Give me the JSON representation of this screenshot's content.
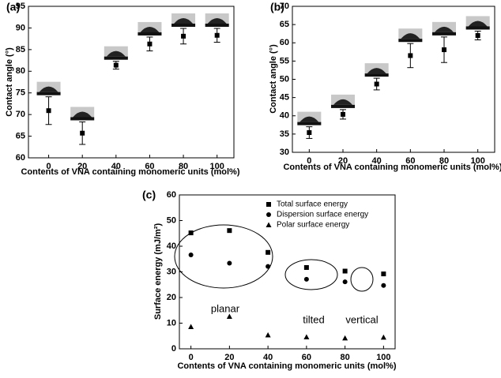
{
  "chart_data": [
    {
      "type": "scatter",
      "panel_label": "(a)",
      "xlabel": "Contents of VNA containing monomeric units (mol%)",
      "ylabel": "Contact angle (°)",
      "x": [
        0,
        20,
        40,
        60,
        80,
        100
      ],
      "xlim": [
        -12,
        110
      ],
      "xticks": [
        0,
        20,
        40,
        60,
        80,
        100
      ],
      "ylim": [
        60,
        95
      ],
      "yticks": [
        60,
        65,
        70,
        75,
        80,
        85,
        90,
        95
      ],
      "series": [
        {
          "marker": "square",
          "color": "#000000",
          "values": [
            70.9,
            65.7,
            81.4,
            86.3,
            88.1,
            88.3
          ],
          "errors": [
            3.2,
            2.6,
            0.9,
            1.6,
            1.8,
            1.6
          ]
        }
      ]
    },
    {
      "type": "scatter",
      "panel_label": "(b)",
      "xlabel": "Contents of VNA containing monomeric units (mol%)",
      "ylabel": "Contact angle (°)",
      "x": [
        0,
        20,
        40,
        60,
        80,
        100
      ],
      "xlim": [
        -10,
        110
      ],
      "xticks": [
        0,
        20,
        40,
        60,
        80,
        100
      ],
      "ylim": [
        30,
        70
      ],
      "yticks": [
        30,
        35,
        40,
        45,
        50,
        55,
        60,
        65,
        70
      ],
      "series": [
        {
          "marker": "square",
          "color": "#000000",
          "values": [
            35.4,
            40.4,
            48.7,
            56.5,
            58.1,
            62.0
          ],
          "errors": [
            1.6,
            1.3,
            1.6,
            3.3,
            3.5,
            1.2
          ]
        }
      ]
    },
    {
      "type": "scatter",
      "panel_label": "(c)",
      "xlabel": "Contents of VNA containing monomeric units (mol%)",
      "ylabel": "Surface energy (mJ/m²)",
      "x": [
        0,
        20,
        40,
        60,
        80,
        100
      ],
      "xlim": [
        -6,
        106
      ],
      "xticks": [
        0,
        20,
        40,
        60,
        80,
        100
      ],
      "ylim": [
        0,
        60
      ],
      "yticks": [
        0,
        10,
        20,
        30,
        40,
        50,
        60
      ],
      "series": [
        {
          "name": "Total surface energy",
          "marker": "square",
          "color": "#000000",
          "values": [
            45.2,
            46.1,
            37.6,
            31.7,
            30.3,
            29.2
          ]
        },
        {
          "name": "Dispersion surface energy",
          "marker": "circle",
          "color": "#000000",
          "values": [
            36.6,
            33.4,
            32.1,
            27.1,
            26.1,
            24.7
          ]
        },
        {
          "name": "Polar surface energy",
          "marker": "triangle",
          "color": "#000000",
          "values": [
            8.6,
            12.6,
            5.4,
            4.6,
            4.2,
            4.5
          ]
        }
      ],
      "annotations": [
        "planar",
        "tilted",
        "vertical"
      ]
    }
  ]
}
